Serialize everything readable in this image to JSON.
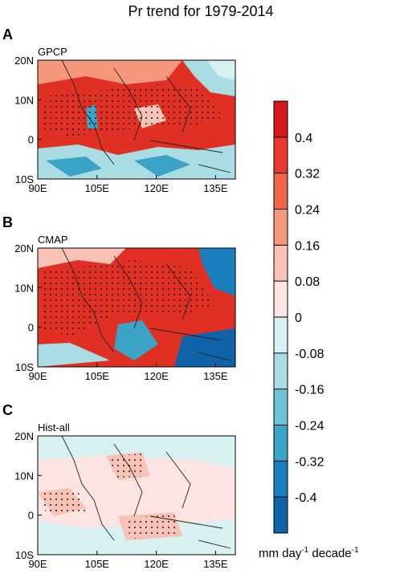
{
  "title": "Pr trend for 1979-2014",
  "panels": [
    {
      "letter": "A",
      "name": "GPCP"
    },
    {
      "letter": "B",
      "name": "CMAP"
    },
    {
      "letter": "C",
      "name": "Hist-all"
    }
  ],
  "xticks": [
    {
      "value": 90,
      "label": "90E"
    },
    {
      "value": 105,
      "label": "105E"
    },
    {
      "value": 120,
      "label": "120E"
    },
    {
      "value": 135,
      "label": "135E"
    }
  ],
  "yticks": [
    {
      "value": 20,
      "label": "20N"
    },
    {
      "value": 10,
      "label": "10N"
    },
    0,
    {
      "value": -10,
      "label": "10S"
    }
  ],
  "xlim": [
    90,
    140
  ],
  "ylim": [
    -10,
    20
  ],
  "colorbar": {
    "levels": [
      0.4,
      0.32,
      0.24,
      0.16,
      0.08,
      0,
      -0.08,
      -0.16,
      -0.24,
      -0.32,
      -0.4
    ],
    "colors": [
      "#d7191c",
      "#e8382f",
      "#ef6548",
      "#f4977c",
      "#f8c3b6",
      "#fbe4e2",
      "#d9f0f3",
      "#a9dde3",
      "#6bc4d1",
      "#3aa3c6",
      "#1a80bd",
      "#0f63a8"
    ],
    "unit": {
      "text1": "mm day",
      "sup1": "-1",
      "text2": " decade",
      "sup2": "-1"
    }
  }
}
